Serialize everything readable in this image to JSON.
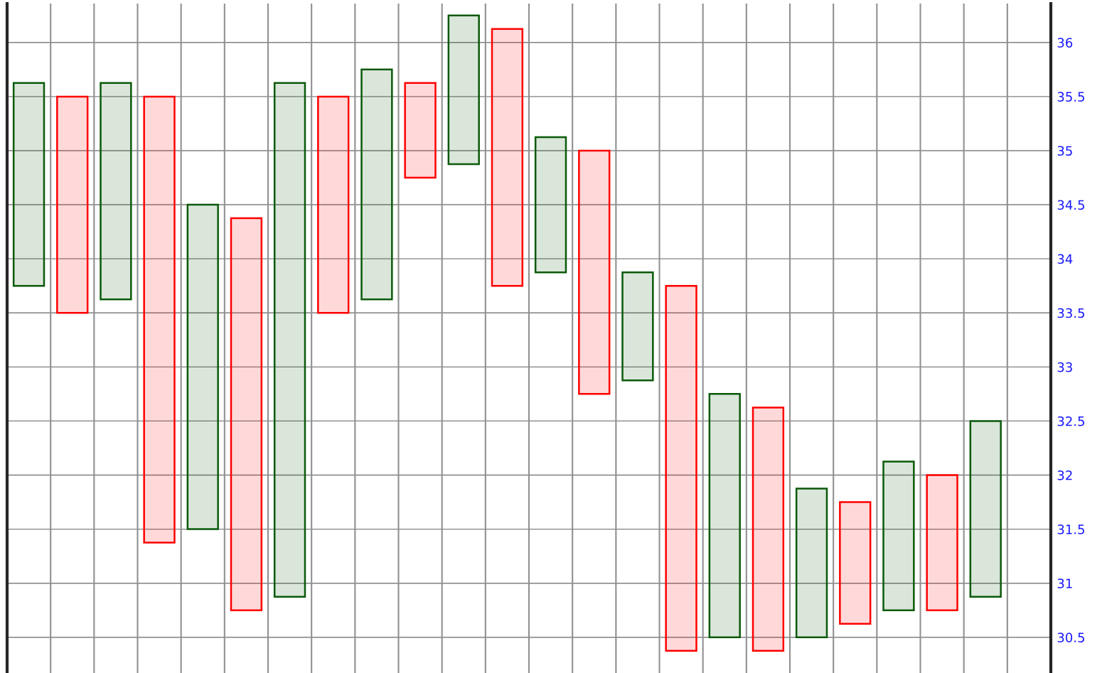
{
  "chart_data": {
    "type": "bar",
    "categories": [
      null,
      null,
      null,
      null,
      null,
      null,
      null,
      null,
      null,
      null,
      null,
      null,
      null,
      null,
      null,
      null,
      null,
      null,
      null,
      null,
      null,
      null,
      null,
      null
    ],
    "base": [
      33.75,
      33.5,
      33.625,
      31.375,
      31.5,
      30.75,
      30.875,
      33.5,
      33.625,
      34.75,
      34.875,
      33.75,
      33.875,
      32.75,
      32.875,
      30.375,
      30.5,
      30.375,
      30.5,
      30.625,
      30.75,
      30.75,
      30.875,
      null
    ],
    "values": [
      1.875,
      2.0,
      2.0,
      4.125,
      3.0,
      3.625,
      4.75,
      2.0,
      2.125,
      0.875,
      1.375,
      2.375,
      1.25,
      2.25,
      1.0,
      3.375,
      2.25,
      2.25,
      1.375,
      1.125,
      1.375,
      1.25,
      1.625,
      null
    ],
    "colors": [
      "#0a5a0a",
      "#ff0000",
      "#0a5a0a",
      "#ff0000",
      "#0a5a0a",
      "#ff0000",
      "#0a5a0a",
      "#ff0000",
      "#0a5a0a",
      "#ff0000",
      "#0a5a0a",
      "#ff0000",
      "#0a5a0a",
      "#ff0000",
      "#0a5a0a",
      "#ff0000",
      "#0a5a0a",
      "#ff0000",
      "#0a5a0a",
      "#ff0000",
      "#0a5a0a",
      "#ff0000",
      "#0a5a0a",
      "#ff0000"
    ],
    "ylim": [
      30.17,
      36.36
    ],
    "yticks": [
      30.5,
      31,
      31.5,
      32,
      32.5,
      33,
      33.5,
      34,
      34.5,
      35,
      35.5,
      36
    ],
    "tick_labels": "y",
    "grid": true
  }
}
